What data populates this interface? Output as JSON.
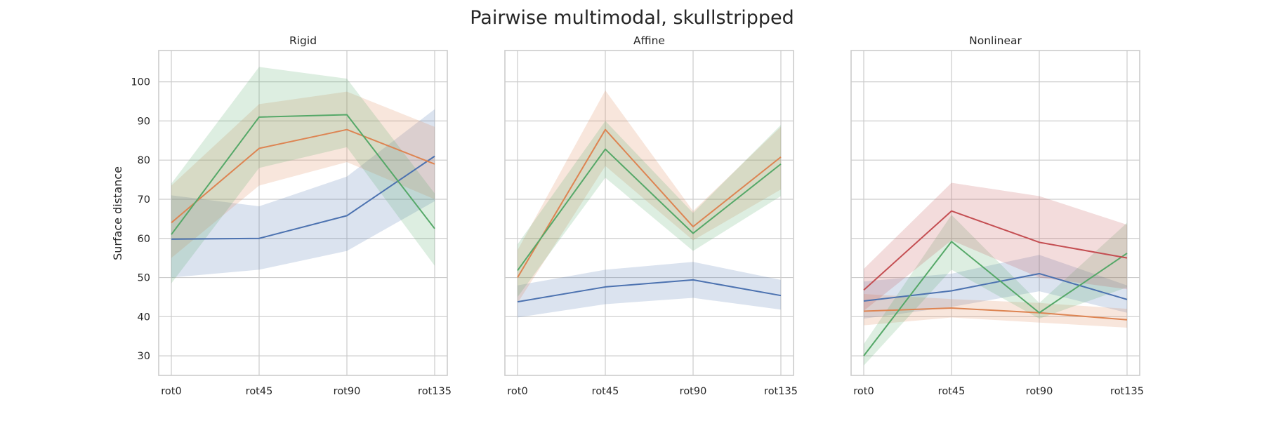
{
  "chart_data": {
    "type": "line",
    "title": "Pairwise multimodal, skullstripped",
    "ylabel": "Surface distance",
    "ylim": [
      25,
      108
    ],
    "yticks": [
      "30",
      "40",
      "50",
      "60",
      "70",
      "80",
      "90",
      "100"
    ],
    "categories": [
      "rot0",
      "rot45",
      "rot90",
      "rot135"
    ],
    "grid": true,
    "sharey": true,
    "colors": [
      "#4c72b0",
      "#dd8452",
      "#55a868",
      "#c44e52"
    ],
    "panels": [
      {
        "title": "Rigid",
        "series": [
          {
            "color": "#4c72b0",
            "values": [
              59.8,
              60.0,
              65.8,
              81.0
            ],
            "ci_low": [
              50.0,
              52.0,
              56.8,
              69.5
            ],
            "ci_high": [
              71.0,
              68.2,
              75.8,
              93.0
            ]
          },
          {
            "color": "#dd8452",
            "values": [
              64.0,
              83.0,
              87.8,
              79.0
            ],
            "ci_low": [
              55.0,
              73.5,
              79.5,
              70.0
            ],
            "ci_high": [
              73.5,
              94.3,
              97.5,
              88.5
            ]
          },
          {
            "color": "#55a868",
            "values": [
              61.0,
              91.0,
              91.6,
              62.5
            ],
            "ci_low": [
              48.5,
              78.0,
              83.3,
              53.0
            ],
            "ci_high": [
              74.0,
              103.8,
              100.8,
              71.5
            ]
          }
        ]
      },
      {
        "title": "Affine",
        "series": [
          {
            "color": "#4c72b0",
            "values": [
              43.8,
              47.6,
              49.4,
              45.4
            ],
            "ci_low": [
              39.8,
              43.2,
              44.8,
              41.8
            ],
            "ci_high": [
              48.0,
              52.0,
              54.0,
              49.4
            ]
          },
          {
            "color": "#dd8452",
            "values": [
              50.0,
              87.8,
              63.0,
              80.8
            ],
            "ci_low": [
              43.5,
              78.5,
              59.5,
              72.5
            ],
            "ci_high": [
              57.0,
              97.8,
              67.0,
              88.5
            ]
          },
          {
            "color": "#55a868",
            "values": [
              51.8,
              82.8,
              61.3,
              79.0
            ],
            "ci_low": [
              45.0,
              75.5,
              56.8,
              70.8
            ],
            "ci_high": [
              58.5,
              90.0,
              66.5,
              89.0
            ]
          }
        ]
      },
      {
        "title": "Nonlinear",
        "series": [
          {
            "color": "#4c72b0",
            "values": [
              44.0,
              46.6,
              51.0,
              44.4
            ],
            "ci_low": [
              39.5,
              42.5,
              46.5,
              41.0
            ],
            "ci_high": [
              49.0,
              51.0,
              55.8,
              48.0
            ]
          },
          {
            "color": "#dd8452",
            "values": [
              41.4,
              42.2,
              41.0,
              39.2
            ],
            "ci_low": [
              37.8,
              39.8,
              38.5,
              37.2
            ],
            "ci_high": [
              45.8,
              44.5,
              43.5,
              42.0
            ]
          },
          {
            "color": "#55a868",
            "values": [
              30.0,
              59.2,
              41.0,
              56.2
            ],
            "ci_low": [
              27.5,
              52.0,
              39.5,
              47.5
            ],
            "ci_high": [
              33.0,
              66.0,
              43.5,
              64.0
            ]
          },
          {
            "color": "#c44e52",
            "values": [
              46.8,
              67.0,
              59.0,
              55.0
            ],
            "ci_low": [
              41.5,
              59.5,
              50.0,
              47.0
            ],
            "ci_high": [
              52.2,
              74.2,
              70.8,
              63.5
            ]
          }
        ]
      }
    ]
  }
}
